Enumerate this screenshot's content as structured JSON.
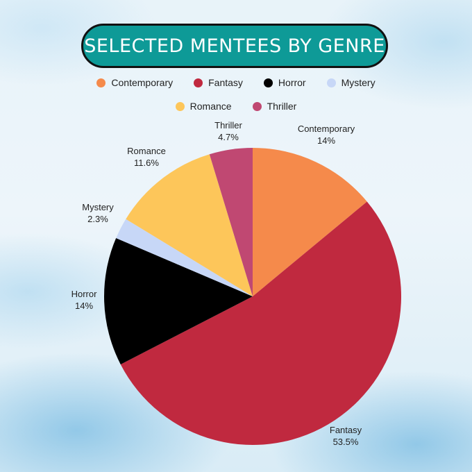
{
  "title": "SELECTED MENTEES BY GENRE",
  "chart_data": {
    "type": "pie",
    "title": "SELECTED MENTEES BY GENRE",
    "legend_position": "top",
    "categories": [
      "Contemporary",
      "Fantasy",
      "Horror",
      "Mystery",
      "Romance",
      "Thriller"
    ],
    "values": [
      14,
      53.5,
      14,
      2.3,
      11.6,
      4.7
    ],
    "value_labels": [
      "14%",
      "53.5%",
      "14%",
      "2.3%",
      "11.6%",
      "4.7%"
    ],
    "colors": [
      "#f58a4b",
      "#c0293f",
      "#000000",
      "#c7d7f7",
      "#fdc65a",
      "#c04872"
    ]
  }
}
